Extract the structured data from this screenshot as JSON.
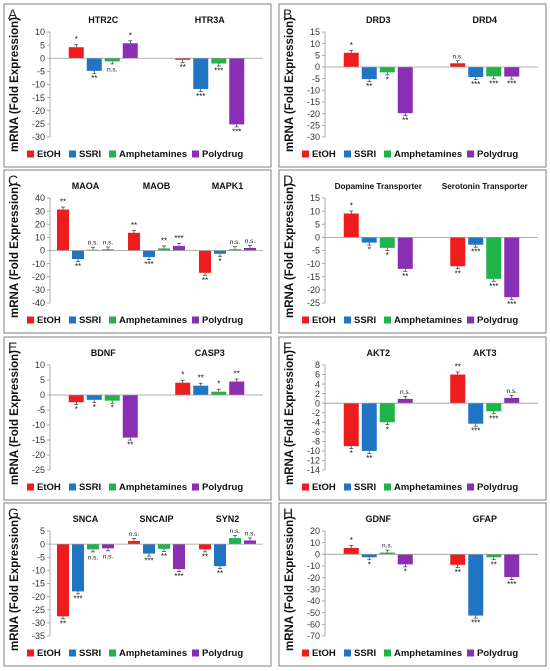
{
  "legend": {
    "items": [
      {
        "label": "EtOH",
        "color": "#ee1c1c"
      },
      {
        "label": "SSRI",
        "color": "#1f74c4"
      },
      {
        "label": "Amphetamines",
        "color": "#1fb34a"
      },
      {
        "label": "Polydrug",
        "color": "#8a2fb3"
      }
    ]
  },
  "chart_data": [
    {
      "panel": "A",
      "type": "bar",
      "ylabel": "mRNA (Fold Expression)",
      "ylim": [
        -30,
        10
      ],
      "yticks": [
        10,
        5,
        0,
        -5,
        -10,
        -15,
        -20,
        -25,
        -30
      ],
      "genes": [
        {
          "name": "HTR2C",
          "values": [
            4.2,
            -4.8,
            -1.2,
            5.7
          ],
          "sig": [
            "*",
            "**",
            "n.s.",
            "*"
          ]
        },
        {
          "name": "HTR3A",
          "values": [
            -0.6,
            -11.7,
            -2.0,
            -25.2
          ],
          "sig": [
            "**",
            "***",
            "***",
            "***"
          ]
        }
      ]
    },
    {
      "panel": "B",
      "type": "bar",
      "ylabel": "mRNA (Fold Expression)",
      "ylim": [
        -30,
        15
      ],
      "yticks": [
        15,
        10,
        5,
        0,
        -5,
        -10,
        -15,
        -20,
        -25,
        -30
      ],
      "genes": [
        {
          "name": "DRD3",
          "values": [
            6.1,
            -5.2,
            -2.3,
            -19.8
          ],
          "sig": [
            "*",
            "**",
            "*",
            "**"
          ]
        },
        {
          "name": "DRD4",
          "values": [
            1.6,
            -4.3,
            -4.0,
            -4.1
          ],
          "sig": [
            "n.s.",
            "***",
            "***",
            "***"
          ]
        }
      ]
    },
    {
      "panel": "C",
      "type": "bar",
      "ylabel": "mRNA (Fold Expression)",
      "ylim": [
        -40,
        40
      ],
      "yticks": [
        40,
        30,
        20,
        10,
        0,
        -10,
        -20,
        -30,
        -40
      ],
      "genes": [
        {
          "name": "MAOA",
          "values": [
            31.2,
            -6.5,
            0.6,
            0.8
          ],
          "sig": [
            "**",
            "**",
            "n.s.",
            "n.s."
          ]
        },
        {
          "name": "MAOB",
          "values": [
            13.5,
            -5.0,
            1.6,
            3.4
          ],
          "sig": [
            "**",
            "***",
            "**",
            "***"
          ]
        },
        {
          "name": "MAPK1",
          "values": [
            -17.0,
            -2.5,
            1.0,
            1.9
          ],
          "sig": [
            "**",
            "*",
            "n.s.",
            "n.s."
          ]
        }
      ]
    },
    {
      "panel": "D",
      "type": "bar",
      "ylabel": "mRNA (Fold Expression)",
      "ylim": [
        -25,
        15
      ],
      "yticks": [
        15,
        10,
        5,
        0,
        -5,
        -10,
        -15,
        -20,
        -25
      ],
      "genes": [
        {
          "name": "Dopamine Transporter",
          "values": [
            9.1,
            -2.0,
            -4.0,
            -12.0
          ],
          "sig": [
            "*",
            "*",
            "*",
            "**"
          ]
        },
        {
          "name": "Serotonin Transporter",
          "values": [
            -11.0,
            -2.8,
            -15.8,
            -22.8
          ],
          "sig": [
            "**",
            "***",
            "***",
            "***"
          ]
        }
      ]
    },
    {
      "panel": "E",
      "type": "bar",
      "ylabel": "mRNA (Fold Expression)",
      "ylim": [
        -25,
        10
      ],
      "yticks": [
        10,
        5,
        0,
        -5,
        -10,
        -15,
        -20,
        -25
      ],
      "genes": [
        {
          "name": "BDNF",
          "values": [
            -2.4,
            -1.6,
            -1.9,
            -14.2
          ],
          "sig": [
            "*",
            "*",
            "*",
            "**"
          ]
        },
        {
          "name": "CASP3",
          "values": [
            4.1,
            3.1,
            1.1,
            4.5
          ],
          "sig": [
            "*",
            "**",
            "*",
            "**"
          ]
        }
      ]
    },
    {
      "panel": "F",
      "type": "bar",
      "ylabel": "mRNA (Fold Expression)",
      "ylim": [
        -14,
        8
      ],
      "yticks": [
        8,
        6,
        4,
        2,
        0,
        -2,
        -4,
        -6,
        -8,
        -10,
        -12,
        -14
      ],
      "genes": [
        {
          "name": "AKT2",
          "values": [
            -9.0,
            -10.0,
            -4.0,
            0.9
          ],
          "sig": [
            "*",
            "**",
            "*",
            "n.s."
          ]
        },
        {
          "name": "AKT3",
          "values": [
            6.0,
            -4.3,
            -1.7,
            1.1
          ],
          "sig": [
            "**",
            "***",
            "***",
            "n.s."
          ]
        }
      ]
    },
    {
      "panel": "G",
      "type": "bar",
      "ylabel": "mRNA (Fold Expression)",
      "ylim": [
        -35,
        5
      ],
      "yticks": [
        5,
        0,
        -5,
        -10,
        -15,
        -20,
        -25,
        -30,
        -35
      ],
      "genes": [
        {
          "name": "SNCA",
          "values": [
            -27.5,
            -18.0,
            -2.0,
            -1.6
          ],
          "sig": [
            "**",
            "***",
            "n.s.",
            "n.s."
          ]
        },
        {
          "name": "SNCAIP",
          "values": [
            1.2,
            -3.6,
            -1.8,
            -9.5
          ],
          "sig": [
            "n.s.",
            "***",
            "**",
            "***"
          ]
        },
        {
          "name": "SYN2",
          "values": [
            -2.0,
            -8.4,
            2.3,
            1.4
          ],
          "sig": [
            "**",
            "**",
            "n.s.",
            "n.s."
          ]
        }
      ]
    },
    {
      "panel": "H",
      "type": "bar",
      "ylabel": "mRNA (Fold Expression)",
      "ylim": [
        -70,
        20
      ],
      "yticks": [
        20,
        10,
        0,
        -10,
        -20,
        -30,
        -40,
        -50,
        -60,
        -70
      ],
      "genes": [
        {
          "name": "GDNF",
          "values": [
            5.5,
            -2.5,
            1.5,
            -8.6
          ],
          "sig": [
            "*",
            "*",
            "n.s.",
            "*"
          ]
        },
        {
          "name": "GFAP",
          "values": [
            -9.0,
            -52.5,
            -2.5,
            -19.5
          ],
          "sig": [
            "**",
            "***",
            "**",
            "***"
          ]
        }
      ]
    }
  ]
}
